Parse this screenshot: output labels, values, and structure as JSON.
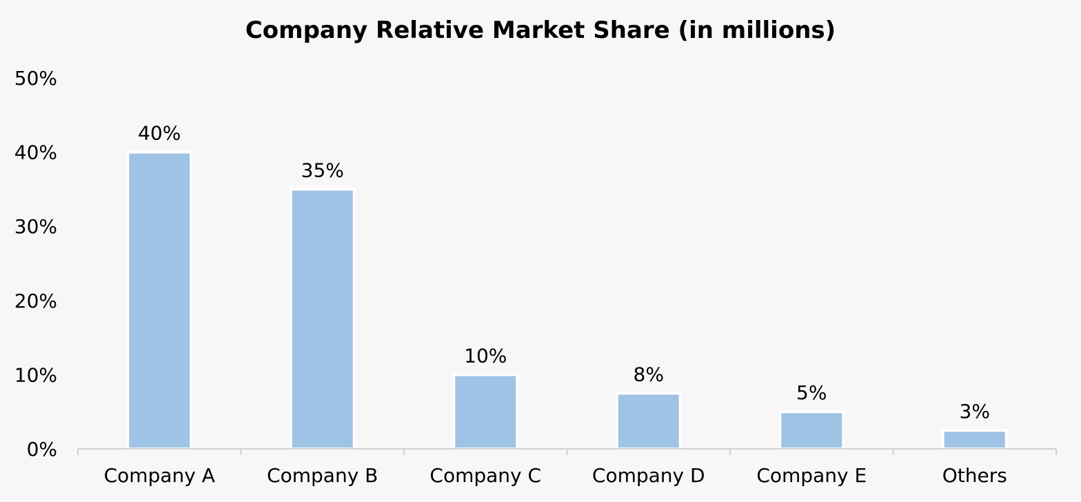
{
  "chart_data": {
    "type": "bar",
    "title": "Company Relative Market Share (in millions)",
    "categories": [
      "Company A",
      "Company B",
      "Company C",
      "Company D",
      "Company E",
      "Others"
    ],
    "values": [
      40,
      35,
      10,
      7.5,
      5,
      2.5
    ],
    "data_labels": [
      "40%",
      "35%",
      "10%",
      "8%",
      "5%",
      "3%"
    ],
    "xlabel": "",
    "ylabel": "",
    "ylim": [
      0,
      50
    ],
    "y_ticks": [
      0,
      10,
      20,
      30,
      40,
      50
    ],
    "y_tick_labels": [
      "0%",
      "10%",
      "20%",
      "30%",
      "40%",
      "50%"
    ],
    "grid": false,
    "legend": "none",
    "bar_color": "#9fc3e5",
    "bar_edge_color": "#ffffff",
    "axis_color": "#d0d0d0",
    "background": "#f7f7f7"
  }
}
